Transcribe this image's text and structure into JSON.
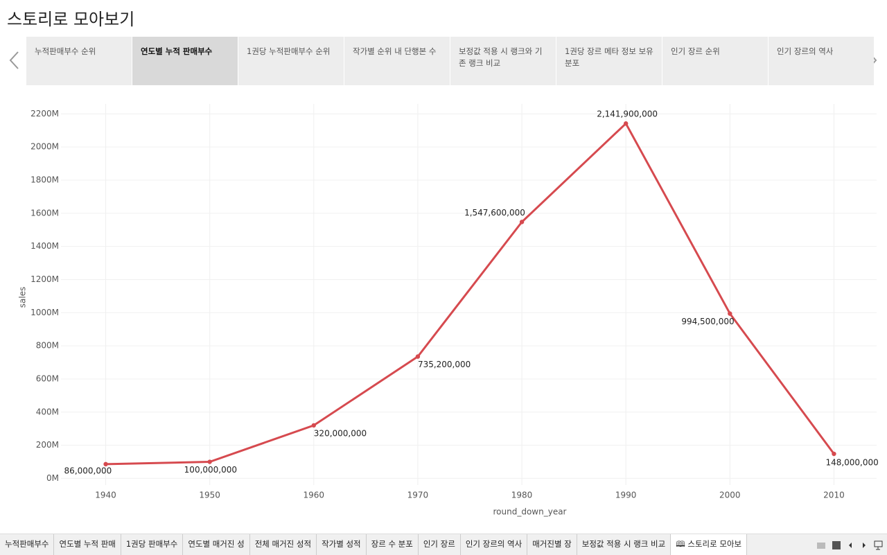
{
  "title": "스토리로 모아보기",
  "story_points": [
    "누적판매부수 순위",
    "연도별 누적 판매부수",
    "1권당 누적판매부수 순위",
    "작가별 순위 내 단행본 수",
    "보정값 적용 시 랭크와 기존 랭크 비교",
    "1권당 장르 메타 정보 보유 분포",
    "인기 장르 순위",
    "인기 장르의 역사"
  ],
  "active_story_point": 1,
  "chart_data": {
    "type": "line",
    "x_label": "round_down_year",
    "y_label": "sales",
    "x": [
      1940,
      1950,
      1960,
      1970,
      1980,
      1990,
      2000,
      2010
    ],
    "values": [
      86000000,
      100000000,
      320000000,
      735200000,
      1547600000,
      2141900000,
      994500000,
      148000000
    ],
    "value_labels": [
      "86,000,000",
      "100,000,000",
      "320,000,000",
      "735,200,000",
      "1,547,600,000",
      "2,141,900,000",
      "994,500,000",
      "148,000,000"
    ],
    "color": "#d64a4f",
    "xlim": [
      1935.7,
      2014.1
    ],
    "xticks": [
      1940,
      1950,
      1960,
      1970,
      1980,
      1990,
      2000,
      2010
    ],
    "ylim": [
      -40000000,
      2260000000
    ],
    "yticks": [
      {
        "value": 0,
        "label": "0M"
      },
      {
        "value": 200000000,
        "label": "200M"
      },
      {
        "value": 400000000,
        "label": "400M"
      },
      {
        "value": 600000000,
        "label": "600M"
      },
      {
        "value": 800000000,
        "label": "800M"
      },
      {
        "value": 1000000000,
        "label": "1000M"
      },
      {
        "value": 1200000000,
        "label": "1200M"
      },
      {
        "value": 1400000000,
        "label": "1400M"
      },
      {
        "value": 1600000000,
        "label": "1600M"
      },
      {
        "value": 1800000000,
        "label": "1800M"
      },
      {
        "value": 2000000000,
        "label": "2000M"
      },
      {
        "value": 2200000000,
        "label": "2200M"
      }
    ],
    "grid": true
  },
  "sheet_tabs": [
    "누적판매부수",
    "연도별 누적 판매",
    "1권당 판매부수",
    "연도별 매거진 성",
    "전체 매거진 성적",
    "작가별 성적",
    "장르 수 분포",
    "인기 장르",
    "인기 장르의 역사",
    "매거진별 장",
    "보정값 적용 시 랭크 비교",
    "스토리로 모아보"
  ],
  "active_sheet_tab": 11
}
